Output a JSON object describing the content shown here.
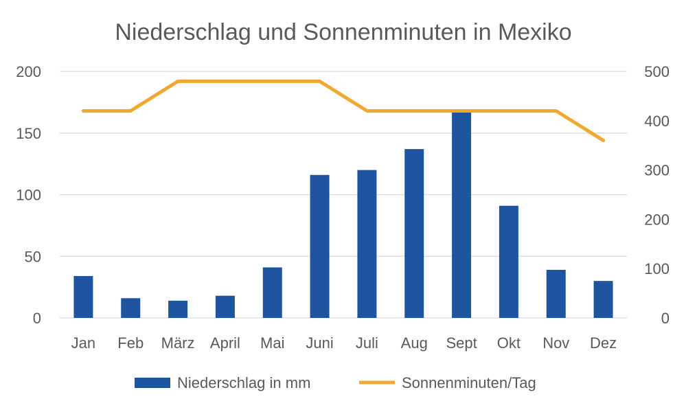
{
  "chart_data": {
    "type": "bar",
    "title": "Niederschlag und Sonnenminuten in Mexiko",
    "categories": [
      "Jan",
      "Feb",
      "März",
      "April",
      "Mai",
      "Juni",
      "Juli",
      "Aug",
      "Sept",
      "Okt",
      "Nov",
      "Dez"
    ],
    "series": [
      {
        "name": "Niederschlag in mm",
        "type": "bar",
        "axis": "left",
        "color": "#1f55a0",
        "values": [
          34,
          16,
          14,
          18,
          41,
          116,
          120,
          137,
          167,
          91,
          39,
          30
        ]
      },
      {
        "name": "Sonnenminuten/Tag",
        "type": "line",
        "axis": "right",
        "color": "#f0a830",
        "values": [
          420,
          420,
          480,
          480,
          480,
          480,
          420,
          420,
          420,
          420,
          420,
          360
        ]
      }
    ],
    "y_left": {
      "min": 0,
      "max": 200,
      "ticks": [
        "0",
        "50",
        "100",
        "150",
        "200"
      ]
    },
    "y_right": {
      "min": 0,
      "max": 500,
      "ticks": [
        "0",
        "100",
        "200",
        "300",
        "400",
        "500"
      ]
    },
    "grid": true,
    "legend_position": "bottom"
  }
}
